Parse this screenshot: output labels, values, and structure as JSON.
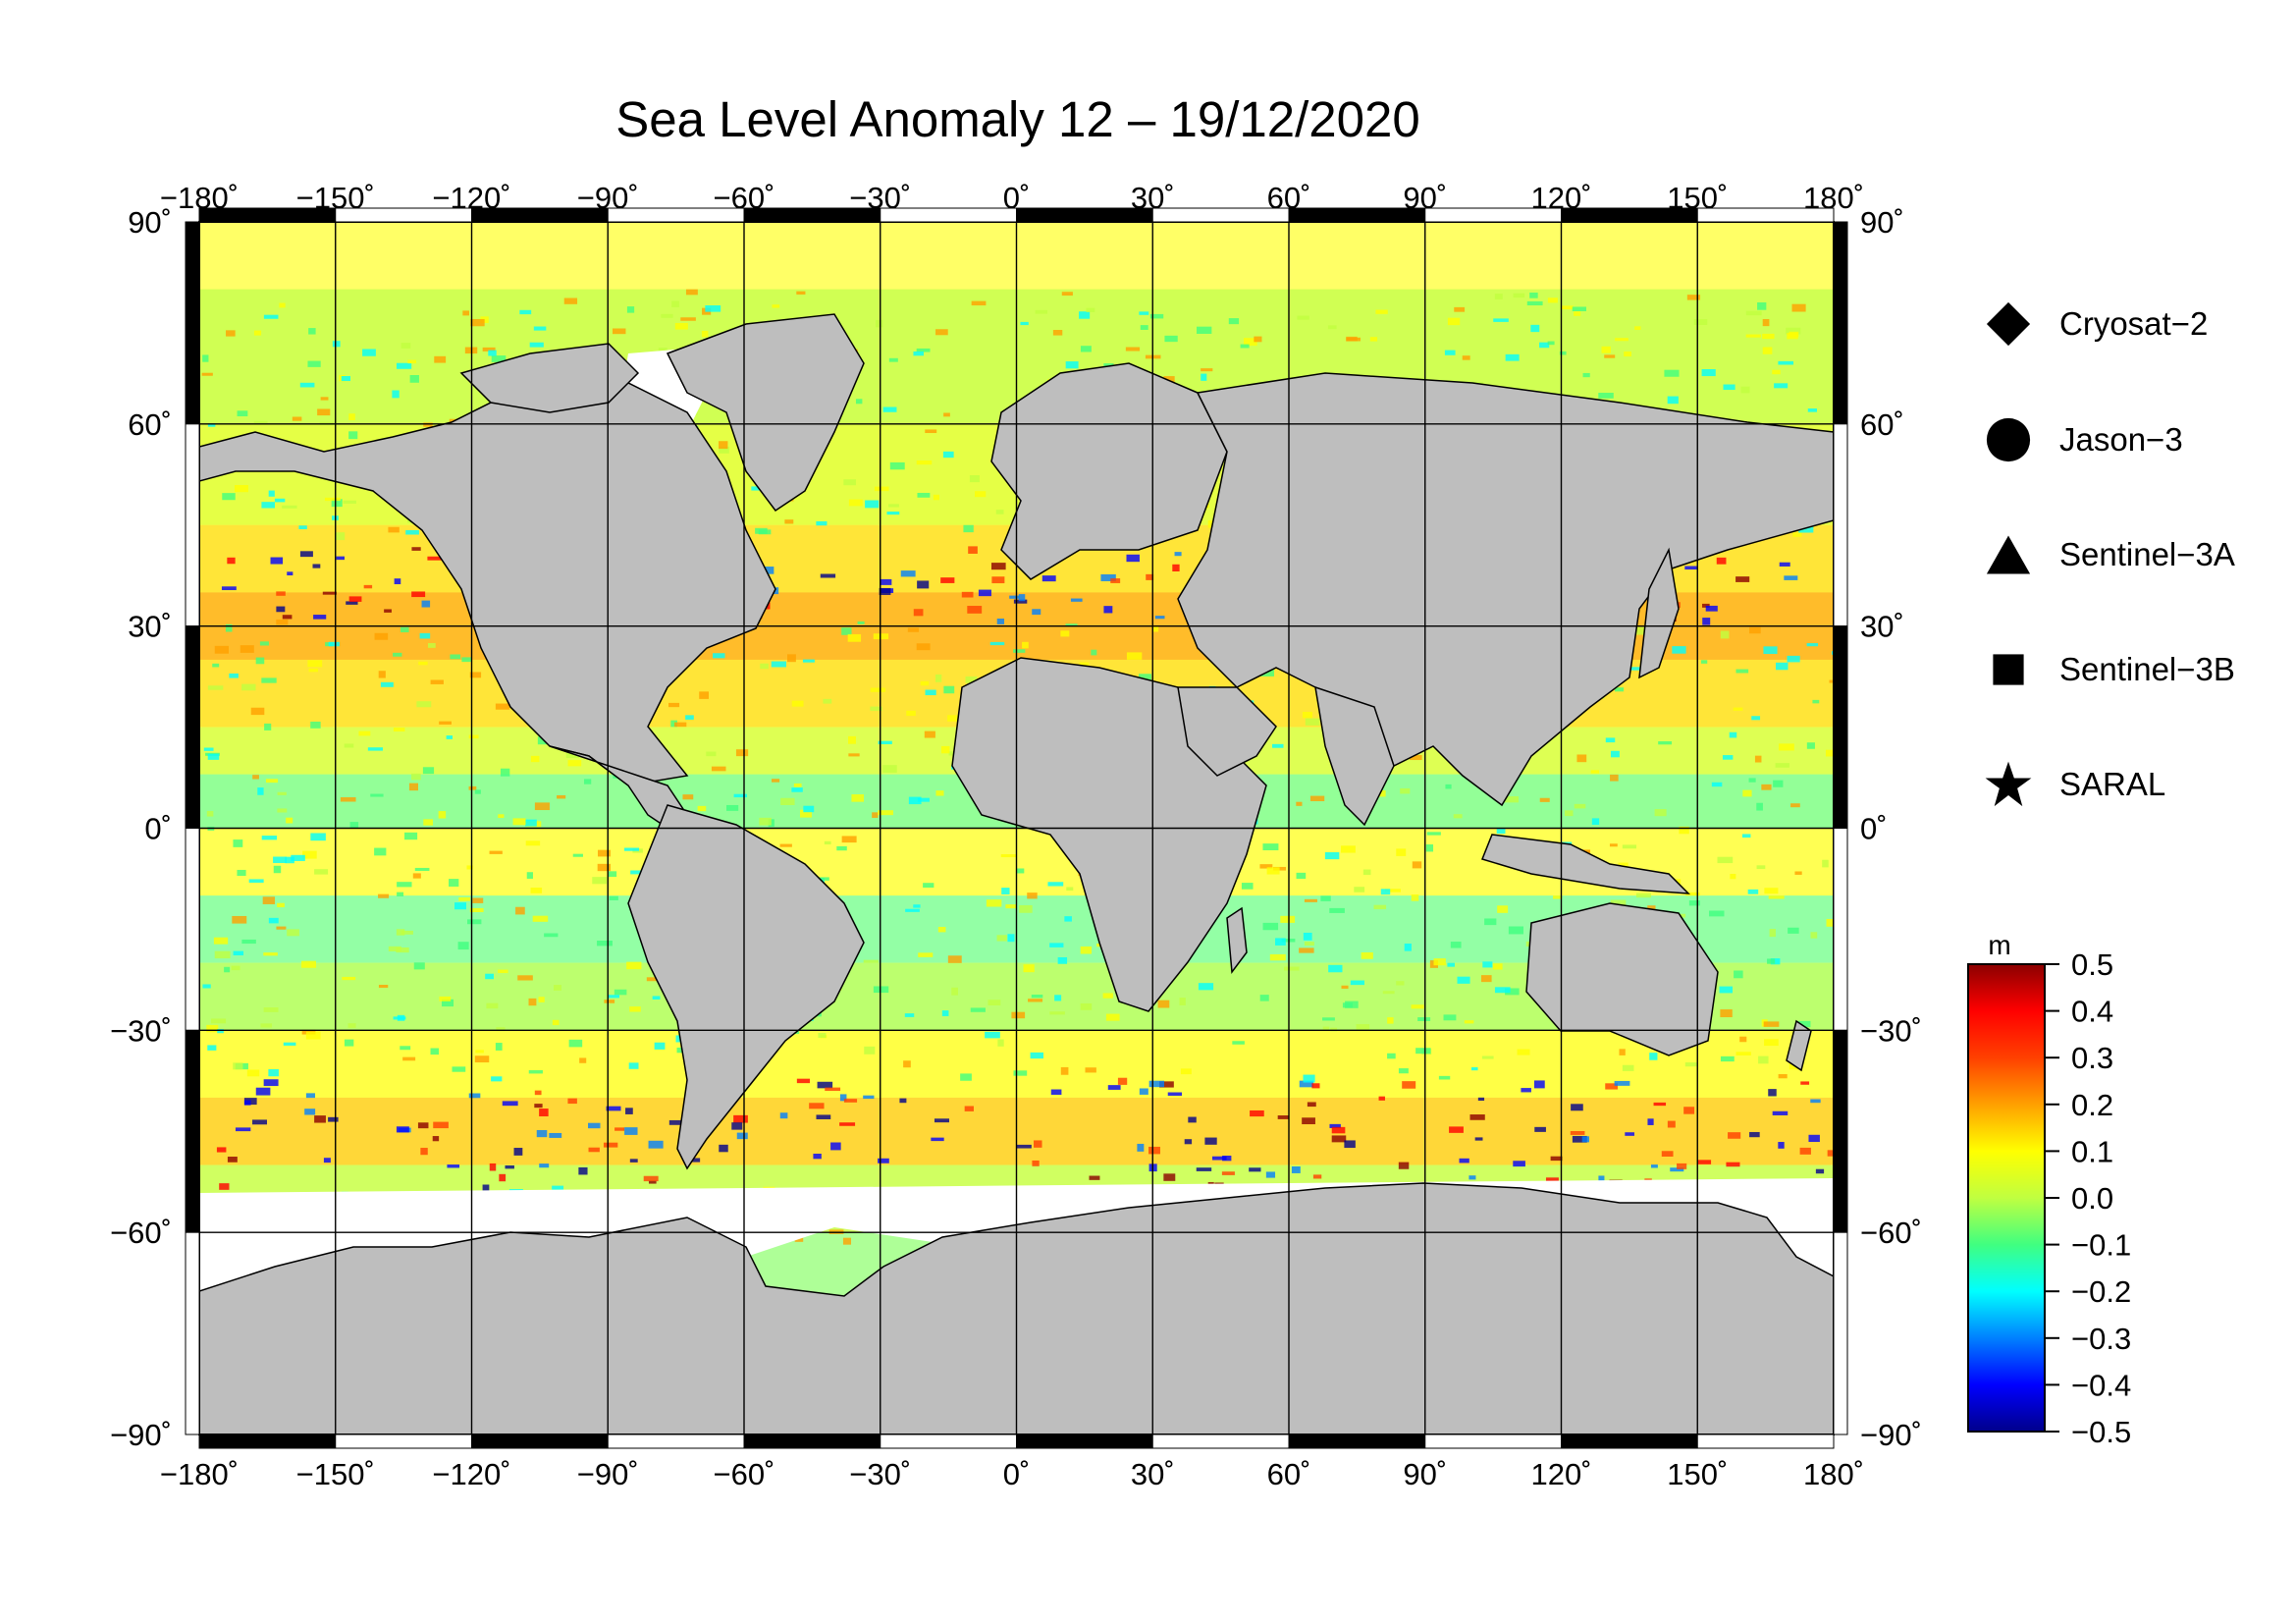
{
  "title": "Sea Level Anomaly 12 – 19/12/2020",
  "map": {
    "lon_ticks": [
      "−180˚",
      "−150˚",
      "−120˚",
      "−90˚",
      "−60˚",
      "−30˚",
      "0˚",
      "30˚",
      "60˚",
      "90˚",
      "120˚",
      "150˚",
      "180˚"
    ],
    "lat_ticks": [
      "90˚",
      "60˚",
      "30˚",
      "0˚",
      "−30˚",
      "−60˚",
      "−90˚"
    ],
    "lon_range": [
      -180,
      180
    ],
    "lat_range": [
      -90,
      90
    ],
    "grid": true,
    "ocean_field": "sea level anomaly (m)",
    "land_color": "#bebebe",
    "no_data_color": "#ffffff"
  },
  "legend": {
    "items": [
      {
        "label": "Cryosat−2",
        "symbol": "diamond-icon"
      },
      {
        "label": "Jason−3",
        "symbol": "circle-icon"
      },
      {
        "label": "Sentinel−3A",
        "symbol": "triangle-icon"
      },
      {
        "label": "Sentinel−3B",
        "symbol": "square-icon"
      },
      {
        "label": "SARAL",
        "symbol": "star-icon"
      }
    ]
  },
  "colorbar": {
    "unit": "m",
    "ticks": [
      "0.5",
      "0.4",
      "0.3",
      "0.2",
      "0.1",
      "0.0",
      "−0.1",
      "−0.2",
      "−0.3",
      "−0.4",
      "−0.5"
    ],
    "range": [
      -0.5,
      0.5
    ],
    "colors": [
      "#00008b",
      "#0000ff",
      "#0080ff",
      "#00ffff",
      "#40ff80",
      "#c0ff40",
      "#ffff00",
      "#ffa000",
      "#ff4000",
      "#ff0000",
      "#8b0000"
    ]
  }
}
